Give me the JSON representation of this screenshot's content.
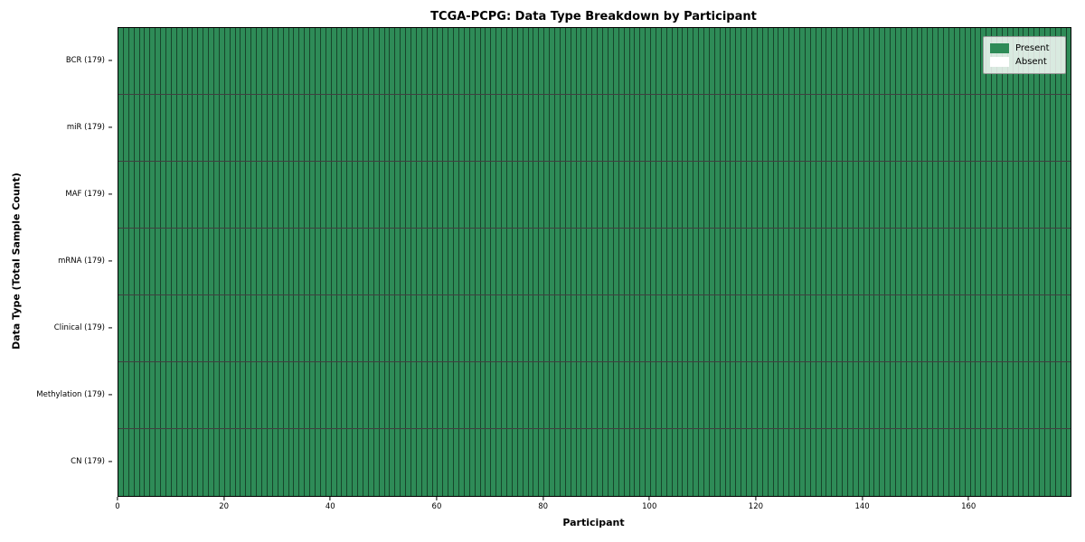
{
  "chart_data": {
    "type": "heatmap",
    "title": "TCGA-PCPG: Data Type Breakdown by Participant",
    "xlabel": "Participant",
    "ylabel": "Data Type (Total Sample Count)",
    "x_range": [
      0,
      179
    ],
    "n_participants": 179,
    "x_ticks": [
      0,
      20,
      40,
      60,
      80,
      100,
      120,
      140,
      160
    ],
    "rows": [
      {
        "label": "BCR",
        "total": 179,
        "display": "BCR (179)",
        "present_count": 179
      },
      {
        "label": "miR",
        "total": 179,
        "display": "miR (179)",
        "present_count": 179
      },
      {
        "label": "MAF",
        "total": 179,
        "display": "MAF (179)",
        "present_count": 179
      },
      {
        "label": "mRNA",
        "total": 179,
        "display": "mRNA (179)",
        "present_count": 179
      },
      {
        "label": "Clinical",
        "total": 179,
        "display": "Clinical (179)",
        "present_count": 179
      },
      {
        "label": "Methylation",
        "total": 179,
        "display": "Methylation (179)",
        "present_count": 179
      },
      {
        "label": "CN",
        "total": 179,
        "display": "CN (179)",
        "present_count": 179
      }
    ],
    "colors": {
      "present": "#2e8b57",
      "absent": "#ffffff"
    },
    "legend": {
      "position": "upper-right",
      "items": [
        {
          "label": "Present",
          "color": "#2e8b57"
        },
        {
          "label": "Absent",
          "color": "#ffffff"
        }
      ]
    },
    "grid": false
  }
}
